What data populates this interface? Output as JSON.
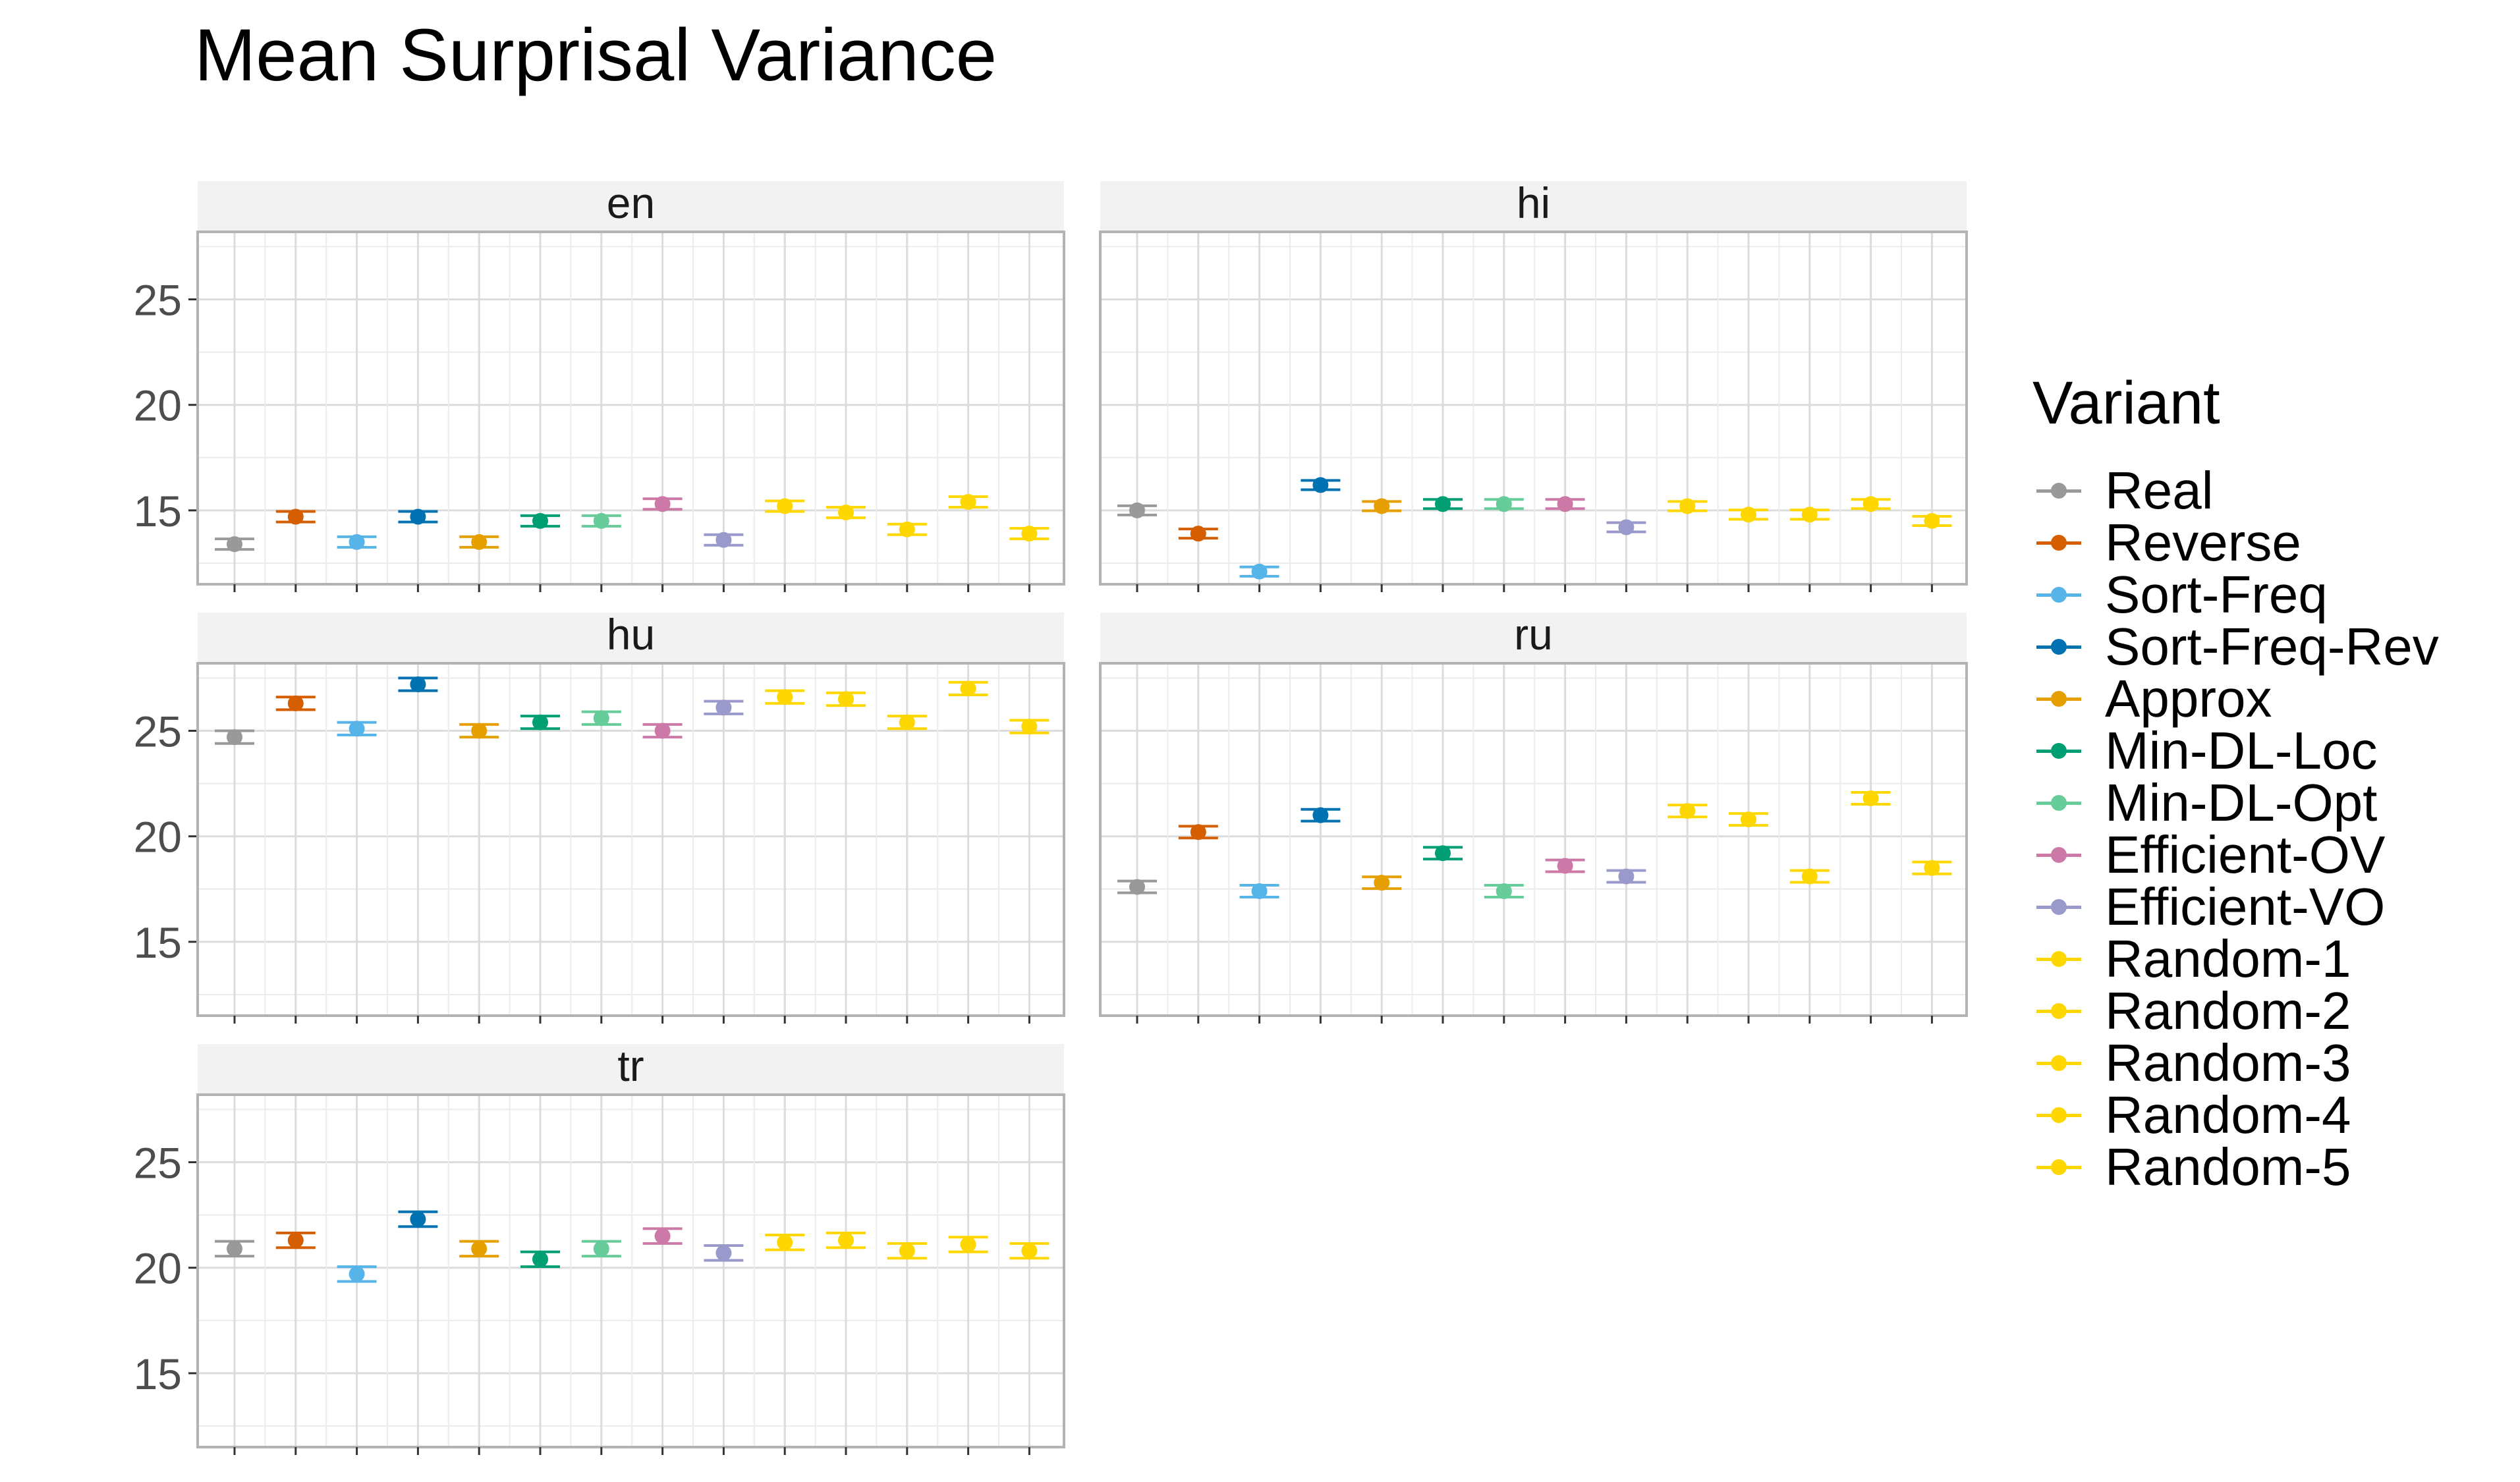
{
  "chart_data": {
    "type": "scatter",
    "title": "Mean Surprisal Variance",
    "xlabel": "",
    "ylabel": "",
    "ylim": [
      11.5,
      28.2
    ],
    "yticks": [
      15,
      20,
      25
    ],
    "grid": true,
    "legend": {
      "title": "Variant",
      "position": "right"
    },
    "variants": [
      "Real",
      "Reverse",
      "Sort-Freq",
      "Sort-Freq-Rev",
      "Approx",
      "Min-DL-Loc",
      "Min-DL-Opt",
      "Efficient-OV",
      "Efficient-VO",
      "Random-1",
      "Random-2",
      "Random-3",
      "Random-4",
      "Random-5"
    ],
    "colors": {
      "Real": "#999999",
      "Reverse": "#D55E00",
      "Sort-Freq": "#56B4E9",
      "Sort-Freq-Rev": "#0072B2",
      "Approx": "#E69F00",
      "Min-DL-Loc": "#009E73",
      "Min-DL-Opt": "#66CC99",
      "Efficient-OV": "#CC79A7",
      "Efficient-VO": "#9999CC",
      "Random-1": "#FFD700",
      "Random-2": "#FFD700",
      "Random-3": "#FFD700",
      "Random-4": "#FFD700",
      "Random-5": "#FFD700"
    },
    "panels": [
      {
        "label": "en",
        "values": [
          13.4,
          14.7,
          13.5,
          14.7,
          13.5,
          14.5,
          14.5,
          15.3,
          13.6,
          15.2,
          14.9,
          14.1,
          15.4,
          13.9
        ],
        "err": [
          0.25,
          0.25,
          0.25,
          0.25,
          0.25,
          0.25,
          0.25,
          0.25,
          0.25,
          0.25,
          0.25,
          0.25,
          0.25,
          0.25
        ]
      },
      {
        "label": "hi",
        "values": [
          15.0,
          13.9,
          12.1,
          16.2,
          15.2,
          15.3,
          15.3,
          15.3,
          14.2,
          15.2,
          14.8,
          14.8,
          15.3,
          14.5
        ],
        "err": [
          0.22,
          0.22,
          0.22,
          0.22,
          0.22,
          0.22,
          0.22,
          0.22,
          0.22,
          0.22,
          0.22,
          0.22,
          0.22,
          0.22
        ]
      },
      {
        "label": "hu",
        "values": [
          24.7,
          26.3,
          25.1,
          27.2,
          25.0,
          25.4,
          25.6,
          25.0,
          26.1,
          26.6,
          26.5,
          25.4,
          27.0,
          25.2
        ],
        "err": [
          0.3,
          0.3,
          0.3,
          0.3,
          0.3,
          0.3,
          0.3,
          0.3,
          0.3,
          0.3,
          0.3,
          0.3,
          0.3,
          0.3
        ]
      },
      {
        "label": "ru",
        "values": [
          17.6,
          20.2,
          17.4,
          21.0,
          17.8,
          19.2,
          17.4,
          18.6,
          18.1,
          21.2,
          20.8,
          18.1,
          21.8,
          18.5
        ],
        "err": [
          0.28,
          0.28,
          0.28,
          0.28,
          0.28,
          0.28,
          0.28,
          0.28,
          0.28,
          0.28,
          0.28,
          0.28,
          0.28,
          0.28
        ]
      },
      {
        "label": "tr",
        "values": [
          20.9,
          21.3,
          19.7,
          22.3,
          20.9,
          20.4,
          20.9,
          21.5,
          20.7,
          21.2,
          21.3,
          20.8,
          21.1,
          20.8
        ],
        "err": [
          0.35,
          0.35,
          0.35,
          0.35,
          0.35,
          0.35,
          0.35,
          0.35,
          0.35,
          0.35,
          0.35,
          0.35,
          0.35,
          0.35
        ]
      }
    ]
  }
}
